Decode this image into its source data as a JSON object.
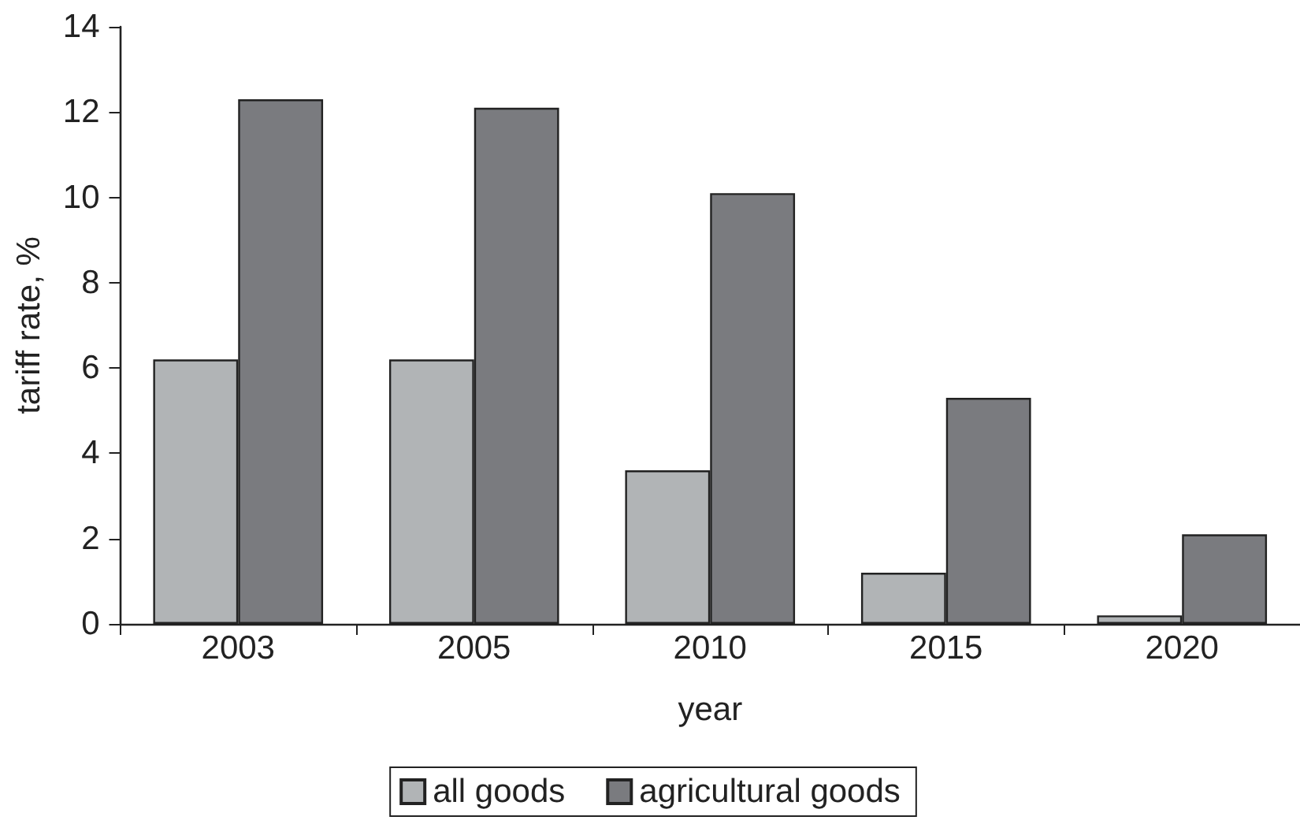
{
  "chart_data": {
    "type": "bar",
    "xlabel": "year",
    "ylabel": "tariff rate, %",
    "categories": [
      "2003",
      "2005",
      "2010",
      "2015",
      "2020"
    ],
    "series": [
      {
        "name": "all goods",
        "color": "#b1b4b6",
        "values": [
          6.2,
          6.2,
          3.6,
          1.2,
          0.2
        ]
      },
      {
        "name": "agricultural goods",
        "color": "#7a7b7f",
        "values": [
          12.3,
          12.1,
          10.1,
          5.3,
          2.1
        ]
      }
    ],
    "ylim": [
      0,
      14
    ],
    "yticks": [
      0,
      2,
      4,
      6,
      8,
      10,
      12,
      14
    ],
    "legend": "bottom"
  }
}
